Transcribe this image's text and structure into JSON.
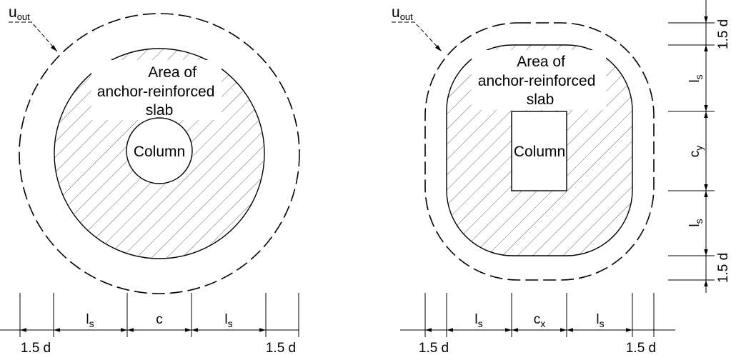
{
  "left": {
    "uout": {
      "main": "u",
      "sub": "out"
    },
    "area_lines": [
      "Area of",
      "anchor-reinforced",
      "slab"
    ],
    "column_label": "Column",
    "dims": {
      "left_outer": "1.5 d",
      "ls_left": "l",
      "ls_left_sub": "s",
      "c": "c",
      "ls_right": "l",
      "ls_right_sub": "s",
      "right_outer": "1.5 d"
    }
  },
  "right": {
    "uout": {
      "main": "u",
      "sub": "out"
    },
    "area_lines": [
      "Area of",
      "anchor-reinforced",
      "slab"
    ],
    "column_label": "Column",
    "dims": {
      "left_outer": "1.5 d",
      "ls_left": "l",
      "ls_left_sub": "s",
      "cx": "c",
      "cx_sub": "x",
      "ls_right": "l",
      "ls_right_sub": "s",
      "right_outer": "1.5 d"
    },
    "vdims": {
      "top": "1.5 d",
      "ls_top": "l",
      "ls_top_sub": "s",
      "cy": "c",
      "cy_sub": "y",
      "ls_bottom": "l",
      "ls_bottom_sub": "s",
      "bottom": "1.5 d"
    }
  }
}
